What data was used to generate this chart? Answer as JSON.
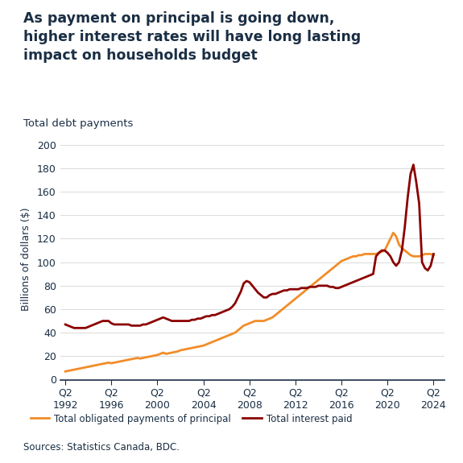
{
  "title_line1": "As payment on principal is going down,",
  "title_line2": "higher interest rates will have long lasting",
  "title_line3": "impact on households budget",
  "subtitle": "Total debt payments",
  "ylabel": "Billions of dollars ($)",
  "source": "Sources: Statistics Canada, BDC.",
  "legend_principal": "Total obligated payments of principal",
  "legend_interest": "Total interest paid",
  "background_color": "#ffffff",
  "title_color": "#1a2e44",
  "text_color": "#1a2e44",
  "axis_color": "#1a2e44",
  "principal_color": "#f28c28",
  "interest_color": "#8b0000",
  "ylim": [
    0,
    205
  ],
  "yticks": [
    0,
    20,
    40,
    60,
    80,
    100,
    120,
    140,
    160,
    180,
    200
  ],
  "xtick_labels": [
    "Q2\n1992",
    "Q2\n1996",
    "Q2\n2000",
    "Q2\n2004",
    "Q2\n2008",
    "Q2\n2012",
    "Q2\n2016",
    "Q2\n2020",
    "Q2\n2024"
  ],
  "xtick_positions": [
    1992.25,
    1996.25,
    2000.25,
    2004.25,
    2008.25,
    2012.25,
    2016.25,
    2020.25,
    2024.25
  ],
  "principal_x": [
    1992.25,
    1992.5,
    1992.75,
    1993.0,
    1993.25,
    1993.5,
    1993.75,
    1994.0,
    1994.25,
    1994.5,
    1994.75,
    1995.0,
    1995.25,
    1995.5,
    1995.75,
    1996.0,
    1996.25,
    1996.5,
    1996.75,
    1997.0,
    1997.25,
    1997.5,
    1997.75,
    1998.0,
    1998.25,
    1998.5,
    1998.75,
    1999.0,
    1999.25,
    1999.5,
    1999.75,
    2000.0,
    2000.25,
    2000.5,
    2000.75,
    2001.0,
    2001.25,
    2001.5,
    2001.75,
    2002.0,
    2002.25,
    2002.5,
    2002.75,
    2003.0,
    2003.25,
    2003.5,
    2003.75,
    2004.0,
    2004.25,
    2004.5,
    2004.75,
    2005.0,
    2005.25,
    2005.5,
    2005.75,
    2006.0,
    2006.25,
    2006.5,
    2006.75,
    2007.0,
    2007.25,
    2007.5,
    2007.75,
    2008.0,
    2008.25,
    2008.5,
    2008.75,
    2009.0,
    2009.25,
    2009.5,
    2009.75,
    2010.0,
    2010.25,
    2010.5,
    2010.75,
    2011.0,
    2011.25,
    2011.5,
    2011.75,
    2012.0,
    2012.25,
    2012.5,
    2012.75,
    2013.0,
    2013.25,
    2013.5,
    2013.75,
    2014.0,
    2014.25,
    2014.5,
    2014.75,
    2015.0,
    2015.25,
    2015.5,
    2015.75,
    2016.0,
    2016.25,
    2016.5,
    2016.75,
    2017.0,
    2017.25,
    2017.5,
    2017.75,
    2018.0,
    2018.25,
    2018.5,
    2018.75,
    2019.0,
    2019.25,
    2019.5,
    2019.75,
    2020.0,
    2020.25,
    2020.5,
    2020.75,
    2021.0,
    2021.25,
    2021.5,
    2021.75,
    2022.0,
    2022.25,
    2022.5,
    2022.75,
    2023.0,
    2023.25,
    2023.5,
    2023.75,
    2024.0,
    2024.25
  ],
  "principal_y": [
    7,
    7.5,
    8,
    8.5,
    9,
    9.5,
    10,
    10.5,
    11,
    11.5,
    12,
    12.5,
    13,
    13.5,
    14,
    14.5,
    14,
    14.5,
    15,
    15.5,
    16,
    16.5,
    17,
    17.5,
    18,
    18.5,
    18,
    18.5,
    19,
    19.5,
    20,
    20.5,
    21,
    22,
    23,
    22,
    22.5,
    23,
    23.5,
    24,
    25,
    25.5,
    26,
    26.5,
    27,
    27.5,
    28,
    28.5,
    29,
    30,
    31,
    32,
    33,
    34,
    35,
    36,
    37,
    38,
    39,
    40,
    42,
    44,
    46,
    47,
    48,
    49,
    50,
    50,
    50,
    50,
    51,
    52,
    53,
    55,
    57,
    59,
    61,
    63,
    65,
    67,
    69,
    71,
    73,
    75,
    77,
    79,
    81,
    83,
    85,
    87,
    89,
    91,
    93,
    95,
    97,
    99,
    101,
    102,
    103,
    104,
    105,
    105,
    106,
    106,
    107,
    107,
    107,
    107,
    107,
    108,
    109,
    110,
    115,
    120,
    125,
    122,
    115,
    112,
    110,
    108,
    106,
    105,
    105,
    105,
    106,
    107,
    107,
    107,
    106
  ],
  "interest_x": [
    1992.25,
    1992.5,
    1992.75,
    1993.0,
    1993.25,
    1993.5,
    1993.75,
    1994.0,
    1994.25,
    1994.5,
    1994.75,
    1995.0,
    1995.25,
    1995.5,
    1995.75,
    1996.0,
    1996.25,
    1996.5,
    1996.75,
    1997.0,
    1997.25,
    1997.5,
    1997.75,
    1998.0,
    1998.25,
    1998.5,
    1998.75,
    1999.0,
    1999.25,
    1999.5,
    1999.75,
    2000.0,
    2000.25,
    2000.5,
    2000.75,
    2001.0,
    2001.25,
    2001.5,
    2001.75,
    2002.0,
    2002.25,
    2002.5,
    2002.75,
    2003.0,
    2003.25,
    2003.5,
    2003.75,
    2004.0,
    2004.25,
    2004.5,
    2004.75,
    2005.0,
    2005.25,
    2005.5,
    2005.75,
    2006.0,
    2006.25,
    2006.5,
    2006.75,
    2007.0,
    2007.25,
    2007.5,
    2007.75,
    2008.0,
    2008.25,
    2008.5,
    2008.75,
    2009.0,
    2009.25,
    2009.5,
    2009.75,
    2010.0,
    2010.25,
    2010.5,
    2010.75,
    2011.0,
    2011.25,
    2011.5,
    2011.75,
    2012.0,
    2012.25,
    2012.5,
    2012.75,
    2013.0,
    2013.25,
    2013.5,
    2013.75,
    2014.0,
    2014.25,
    2014.5,
    2014.75,
    2015.0,
    2015.25,
    2015.5,
    2015.75,
    2016.0,
    2016.25,
    2016.5,
    2016.75,
    2017.0,
    2017.25,
    2017.5,
    2017.75,
    2018.0,
    2018.25,
    2018.5,
    2018.75,
    2019.0,
    2019.25,
    2019.5,
    2019.75,
    2020.0,
    2020.25,
    2020.5,
    2020.75,
    2021.0,
    2021.25,
    2021.5,
    2021.75,
    2022.0,
    2022.25,
    2022.5,
    2022.75,
    2023.0,
    2023.25,
    2023.5,
    2023.75,
    2024.0,
    2024.25
  ],
  "interest_y": [
    47,
    46,
    45,
    44,
    44,
    44,
    44,
    44,
    45,
    46,
    47,
    48,
    49,
    50,
    50,
    50,
    48,
    47,
    47,
    47,
    47,
    47,
    47,
    46,
    46,
    46,
    46,
    47,
    47,
    48,
    49,
    50,
    51,
    52,
    53,
    52,
    51,
    50,
    50,
    50,
    50,
    50,
    50,
    50,
    51,
    51,
    52,
    52,
    53,
    54,
    54,
    55,
    55,
    56,
    57,
    58,
    59,
    60,
    62,
    65,
    70,
    75,
    82,
    84,
    83,
    80,
    77,
    74,
    72,
    70,
    70,
    72,
    73,
    73,
    74,
    75,
    76,
    76,
    77,
    77,
    77,
    77,
    78,
    78,
    78,
    79,
    79,
    79,
    80,
    80,
    80,
    80,
    79,
    79,
    78,
    78,
    79,
    80,
    81,
    82,
    83,
    84,
    85,
    86,
    87,
    88,
    89,
    90,
    105,
    108,
    110,
    110,
    108,
    105,
    100,
    97,
    100,
    110,
    130,
    155,
    175,
    183,
    168,
    150,
    100,
    95,
    93,
    97,
    107
  ]
}
